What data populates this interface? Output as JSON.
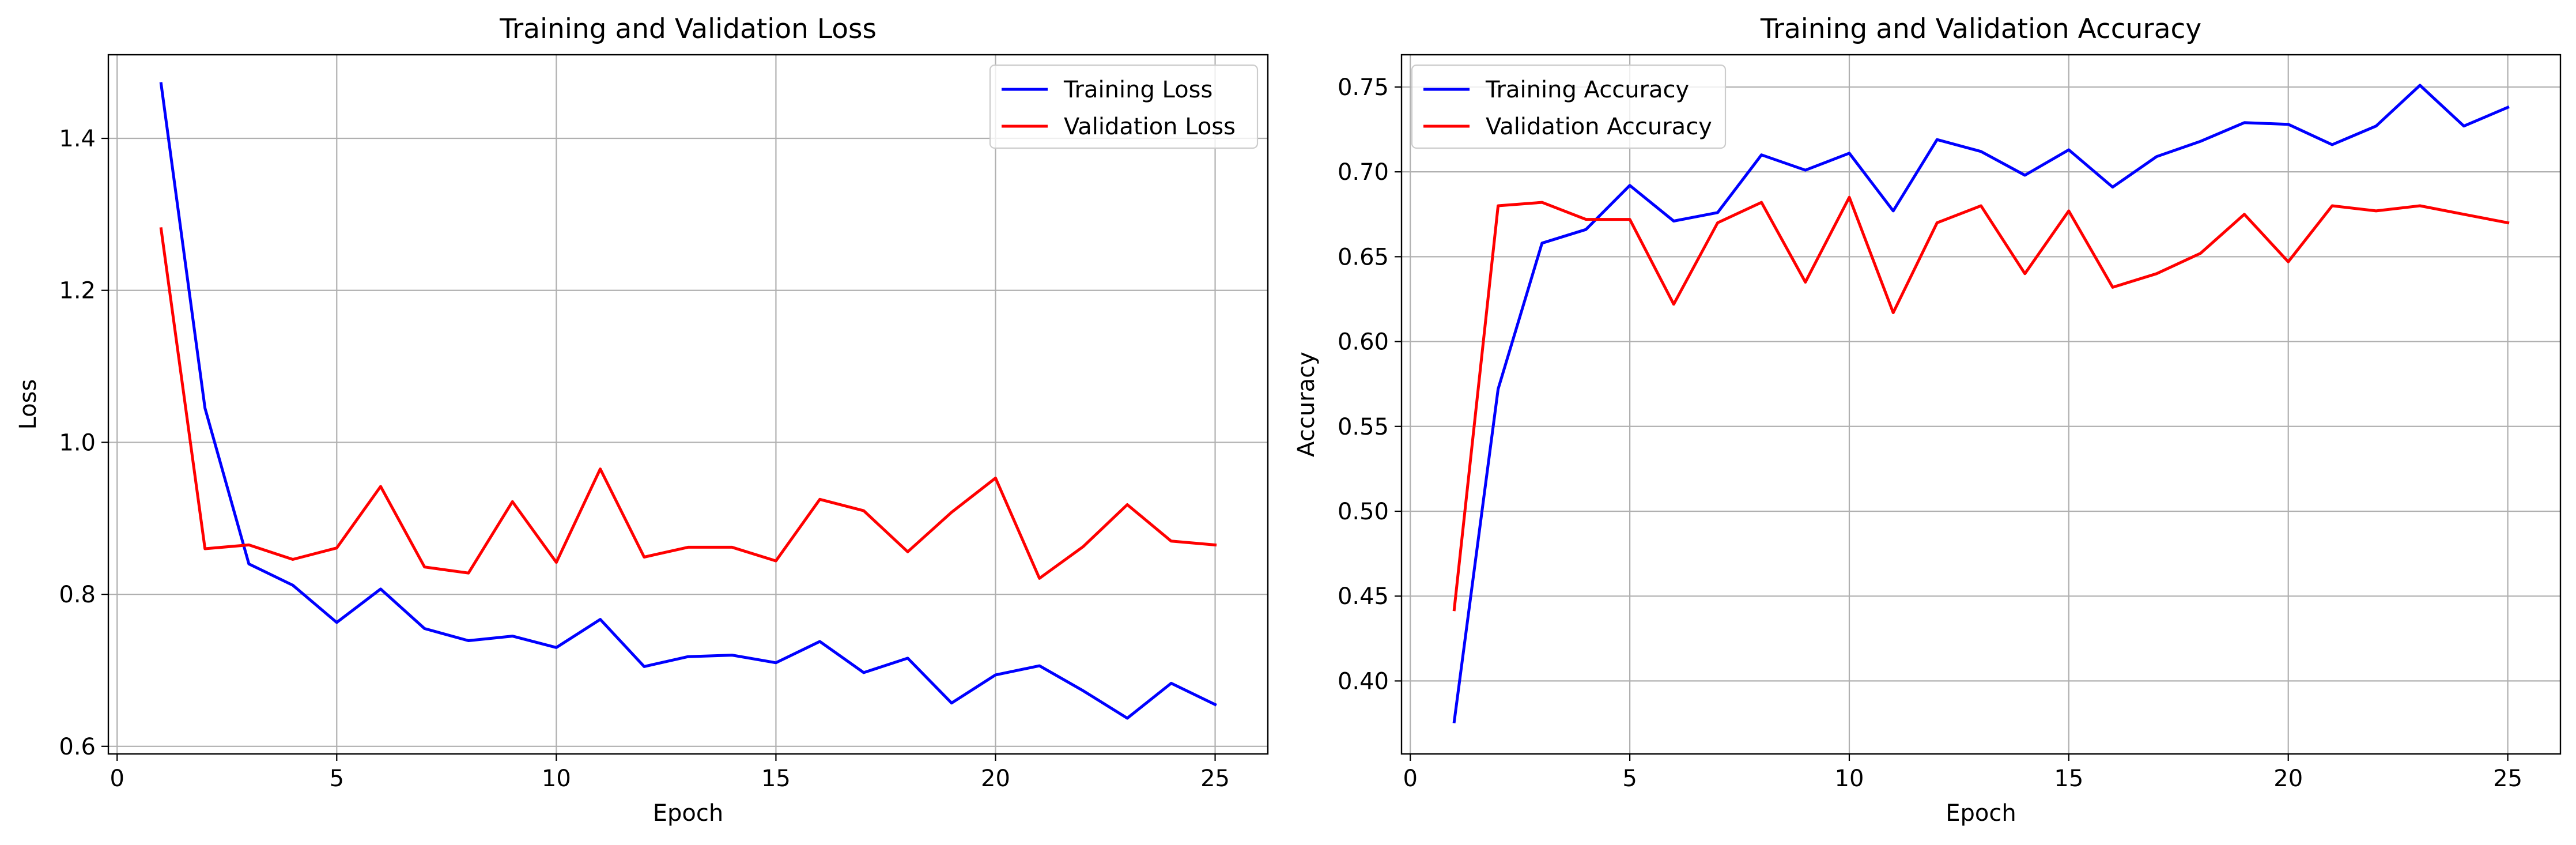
{
  "chart_data": [
    {
      "type": "line",
      "title": "Training and Validation Loss",
      "xlabel": "Epoch",
      "ylabel": "Loss",
      "xlim": [
        -0.2,
        26.2
      ],
      "ylim": [
        0.59,
        1.51
      ],
      "xticks": [
        0,
        5,
        10,
        15,
        20,
        25
      ],
      "xtick_labels": [
        "0",
        "5",
        "10",
        "15",
        "20",
        "25"
      ],
      "yticks": [
        0.6,
        0.8,
        1.0,
        1.2,
        1.4
      ],
      "ytick_labels": [
        "0.6",
        "0.8",
        "1.0",
        "1.2",
        "1.4"
      ],
      "grid": true,
      "legend_position": "top-right",
      "x": [
        1,
        2,
        3,
        4,
        5,
        6,
        7,
        8,
        9,
        10,
        11,
        12,
        13,
        14,
        15,
        16,
        17,
        18,
        19,
        20,
        21,
        22,
        23,
        24,
        25
      ],
      "series": [
        {
          "name": "Training Loss",
          "color": "#0000ff",
          "values": [
            1.472,
            1.045,
            0.84,
            0.812,
            0.763,
            0.807,
            0.755,
            0.739,
            0.745,
            0.73,
            0.767,
            0.705,
            0.718,
            0.72,
            0.71,
            0.738,
            0.697,
            0.716,
            0.657,
            0.694,
            0.706,
            0.673,
            0.637,
            0.683,
            0.655
          ]
        },
        {
          "name": "Validation Loss",
          "color": "#ff0000",
          "values": [
            1.281,
            0.86,
            0.865,
            0.846,
            0.861,
            0.942,
            0.836,
            0.828,
            0.922,
            0.842,
            0.965,
            0.849,
            0.862,
            0.862,
            0.844,
            0.925,
            0.91,
            0.856,
            0.908,
            0.953,
            0.821,
            0.863,
            0.918,
            0.87,
            0.865
          ]
        }
      ]
    },
    {
      "type": "line",
      "title": "Training and Validation Accuracy",
      "xlabel": "Epoch",
      "ylabel": "Accuracy",
      "xlim": [
        -0.2,
        26.2
      ],
      "ylim": [
        0.357,
        0.769
      ],
      "xticks": [
        0,
        5,
        10,
        15,
        20,
        25
      ],
      "xtick_labels": [
        "0",
        "5",
        "10",
        "15",
        "20",
        "25"
      ],
      "yticks": [
        0.4,
        0.45,
        0.5,
        0.55,
        0.6,
        0.65,
        0.7,
        0.75
      ],
      "ytick_labels": [
        "0.40",
        "0.45",
        "0.50",
        "0.55",
        "0.60",
        "0.65",
        "0.70",
        "0.75"
      ],
      "grid": true,
      "legend_position": "top-left",
      "x": [
        1,
        2,
        3,
        4,
        5,
        6,
        7,
        8,
        9,
        10,
        11,
        12,
        13,
        14,
        15,
        16,
        17,
        18,
        19,
        20,
        21,
        22,
        23,
        24,
        25
      ],
      "series": [
        {
          "name": "Training Accuracy",
          "color": "#0000ff",
          "values": [
            0.376,
            0.572,
            0.658,
            0.666,
            0.692,
            0.671,
            0.676,
            0.71,
            0.701,
            0.711,
            0.677,
            0.719,
            0.712,
            0.698,
            0.713,
            0.691,
            0.709,
            0.718,
            0.729,
            0.728,
            0.716,
            0.727,
            0.751,
            0.727,
            0.738
          ]
        },
        {
          "name": "Validation Accuracy",
          "color": "#ff0000",
          "values": [
            0.442,
            0.68,
            0.682,
            0.672,
            0.672,
            0.622,
            0.67,
            0.682,
            0.635,
            0.685,
            0.617,
            0.67,
            0.68,
            0.64,
            0.677,
            0.632,
            0.64,
            0.652,
            0.675,
            0.647,
            0.68,
            0.677,
            0.68,
            0.675,
            0.67
          ]
        }
      ]
    }
  ]
}
